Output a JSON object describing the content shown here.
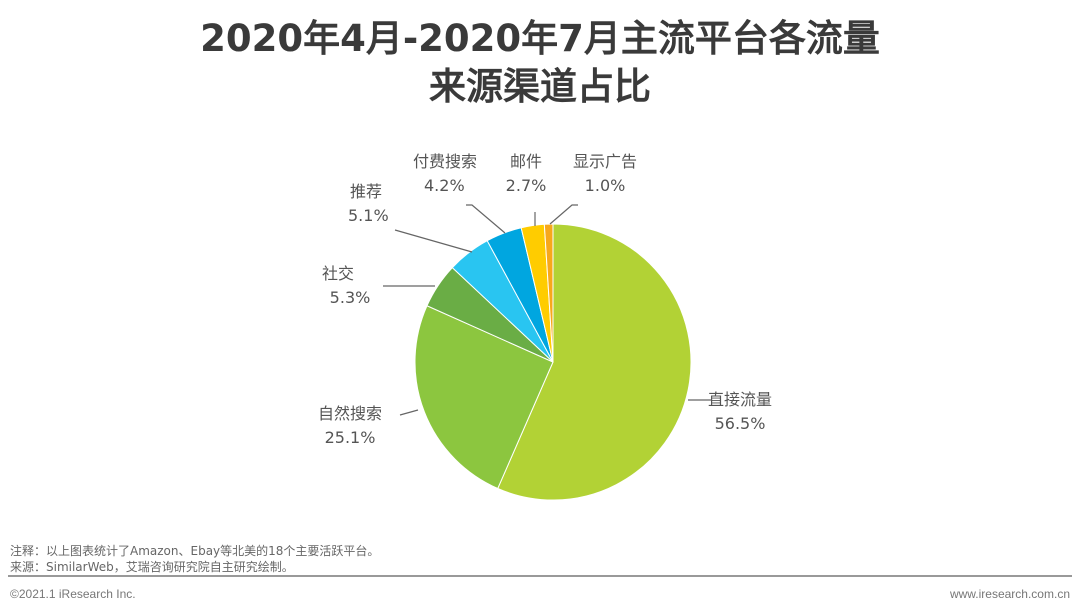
{
  "title_line1": "2020年4月-2020年7月主流平台各流量",
  "title_line2": "来源渠道占比",
  "chart_data": {
    "type": "pie",
    "start": "top",
    "direction": "clockwise",
    "slices": [
      {
        "label": "直接流量",
        "value": 56.5,
        "display": "56.5%",
        "color": "#b2d235"
      },
      {
        "label": "自然搜索",
        "value": 25.1,
        "display": "25.1%",
        "color": "#8cc63f"
      },
      {
        "label": "社交",
        "value": 5.3,
        "display": "5.3%",
        "color": "#6aad45"
      },
      {
        "label": "推荐",
        "value": 5.1,
        "display": "5.1%",
        "color": "#29c5f1"
      },
      {
        "label": "付费搜索",
        "value": 4.2,
        "display": "4.2%",
        "color": "#00a6e0"
      },
      {
        "label": "邮件",
        "value": 2.7,
        "display": "2.7%",
        "color": "#ffcc00"
      },
      {
        "label": "显示广告",
        "value": 1.0,
        "display": "1.0%",
        "color": "#f7a81b"
      }
    ]
  },
  "notes": {
    "note": "注释：以上图表统计了Amazon、Ebay等北美的18个主要活跃平台。",
    "source": "来源：SimilarWeb，艾瑞咨询研究院自主研究绘制。"
  },
  "footer": {
    "copyright": "©2021.1 iResearch Inc.",
    "website": "www.iresearch.com.cn"
  }
}
